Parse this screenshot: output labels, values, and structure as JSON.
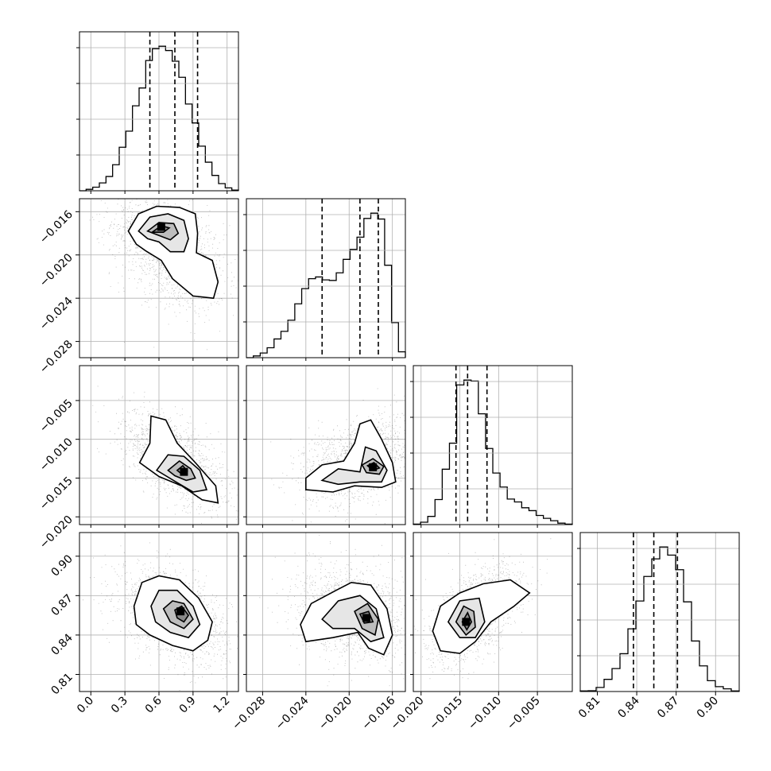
{
  "chart_data": {
    "type": "corner",
    "n_params": 4,
    "params": [
      {
        "range": [
          -0.1,
          1.3
        ],
        "ticks": [
          0.0,
          0.3,
          0.6,
          0.9,
          1.2
        ],
        "tick_labels": [
          "0.0",
          "0.3",
          "0.6",
          "0.9",
          "1.2"
        ],
        "quantiles": [
          0.52,
          0.74,
          0.94
        ]
      },
      {
        "range": [
          -0.0295,
          -0.0148
        ],
        "ticks": [
          -0.028,
          -0.024,
          -0.02,
          -0.016
        ],
        "tick_labels": [
          "−0.028",
          "−0.024",
          "−0.020",
          "−0.016"
        ],
        "quantiles": [
          -0.0225,
          -0.019,
          -0.0173
        ]
      },
      {
        "range": [
          -0.021,
          -0.0005
        ],
        "ticks": [
          -0.02,
          -0.015,
          -0.01,
          -0.005
        ],
        "tick_labels": [
          "−0.020",
          "−0.015",
          "−0.010",
          "−0.005"
        ],
        "quantiles": [
          -0.0155,
          -0.014,
          -0.0115
        ]
      },
      {
        "range": [
          0.797,
          0.918
        ],
        "ticks": [
          0.81,
          0.84,
          0.87,
          0.9
        ],
        "tick_labels": [
          "0.81",
          "0.84",
          "0.87",
          "0.90"
        ],
        "quantiles": [
          0.8375,
          0.853,
          0.871
        ]
      }
    ],
    "histograms": [
      {
        "counts": [
          0.0,
          0.4,
          1.0,
          2.2,
          4.0,
          7.3,
          12.2,
          16.7,
          23.8,
          28.8,
          36.5,
          39.8,
          40.5,
          39.3,
          36.3,
          31.8,
          24.3,
          19.0,
          12.5,
          8.0,
          4.3,
          2.0,
          0.8,
          0.2
        ]
      },
      {
        "counts": [
          0.0,
          0.3,
          0.8,
          1.7,
          3.2,
          4.5,
          6.4,
          9.2,
          11.8,
          13.5,
          13.8,
          13.3,
          13.2,
          14.5,
          16.8,
          18.5,
          20.6,
          23.8,
          24.7,
          23.7,
          15.8,
          6.0,
          1.0
        ]
      },
      {
        "counts": [
          0.1,
          0.5,
          1.7,
          5.2,
          11.5,
          16.9,
          29.0,
          30.0,
          29.8,
          23.0,
          15.8,
          10.7,
          7.8,
          5.3,
          4.7,
          3.5,
          2.9,
          1.9,
          1.3,
          0.8,
          0.3,
          0.1
        ]
      },
      {
        "counts": [
          0.2,
          0.3,
          1.5,
          4.5,
          8.5,
          14.0,
          23.2,
          33.5,
          42.6,
          49.1,
          53.5,
          50.5,
          45.1,
          33.2,
          18.7,
          9.5,
          4.0,
          1.8,
          1.0,
          0.2
        ]
      }
    ],
    "pairs": [
      {
        "x": 0,
        "y": 1,
        "scatter": {
          "cx": 0.68,
          "cy": -0.0195,
          "sx": 0.25,
          "sy": 0.0028,
          "rho": -0.45
        },
        "contours": [
          [
            [
              0.33,
              -0.0178
            ],
            [
              0.42,
              -0.0162
            ],
            [
              0.58,
              -0.0155
            ],
            [
              0.78,
              -0.0156
            ],
            [
              0.92,
              -0.0162
            ],
            [
              0.94,
              -0.018
            ],
            [
              0.93,
              -0.0198
            ],
            [
              1.07,
              -0.0205
            ],
            [
              1.12,
              -0.0225
            ],
            [
              1.08,
              -0.024
            ],
            [
              0.9,
              -0.0238
            ],
            [
              0.72,
              -0.0222
            ],
            [
              0.62,
              -0.0205
            ],
            [
              0.48,
              -0.0196
            ],
            [
              0.4,
              -0.019
            ]
          ],
          [
            [
              0.42,
              -0.0178
            ],
            [
              0.52,
              -0.0165
            ],
            [
              0.68,
              -0.0162
            ],
            [
              0.82,
              -0.0168
            ],
            [
              0.86,
              -0.0185
            ],
            [
              0.82,
              -0.0197
            ],
            [
              0.7,
              -0.0197
            ],
            [
              0.6,
              -0.0188
            ],
            [
              0.5,
              -0.0185
            ]
          ],
          [
            [
              0.5,
              -0.0178
            ],
            [
              0.6,
              -0.017
            ],
            [
              0.73,
              -0.0171
            ],
            [
              0.77,
              -0.018
            ],
            [
              0.7,
              -0.0186
            ],
            [
              0.6,
              -0.0182
            ]
          ],
          [
            [
              0.54,
              -0.0179
            ],
            [
              0.62,
              -0.0173
            ],
            [
              0.69,
              -0.0175
            ],
            [
              0.64,
              -0.0179
            ]
          ]
        ],
        "peak": [
          [
            0.62,
            -0.0174
          ]
        ]
      },
      {
        "x": 0,
        "y": 2,
        "scatter": {
          "cx": 0.72,
          "cy": -0.0125,
          "sx": 0.22,
          "sy": 0.003,
          "rho": -0.6
        },
        "contours": [
          [
            [
              0.43,
              -0.013
            ],
            [
              0.52,
              -0.0105
            ],
            [
              0.53,
              -0.007
            ],
            [
              0.66,
              -0.0075
            ],
            [
              0.76,
              -0.0105
            ],
            [
              0.92,
              -0.013
            ],
            [
              1.1,
              -0.016
            ],
            [
              1.12,
              -0.0182
            ],
            [
              0.98,
              -0.0178
            ],
            [
              0.8,
              -0.016
            ],
            [
              0.6,
              -0.0148
            ]
          ],
          [
            [
              0.58,
              -0.014
            ],
            [
              0.68,
              -0.012
            ],
            [
              0.82,
              -0.0122
            ],
            [
              0.96,
              -0.014
            ],
            [
              1.02,
              -0.0165
            ],
            [
              0.9,
              -0.0168
            ],
            [
              0.75,
              -0.0155
            ]
          ],
          [
            [
              0.68,
              -0.014
            ],
            [
              0.78,
              -0.0128
            ],
            [
              0.88,
              -0.0138
            ],
            [
              0.92,
              -0.015
            ],
            [
              0.84,
              -0.0153
            ],
            [
              0.74,
              -0.0147
            ]
          ],
          [
            [
              0.76,
              -0.014
            ],
            [
              0.81,
              -0.0134
            ],
            [
              0.85,
              -0.0141
            ],
            [
              0.81,
              -0.0146
            ]
          ]
        ],
        "peak": [
          [
            0.82,
            -0.0142
          ]
        ]
      },
      {
        "x": 0,
        "y": 3,
        "scatter": {
          "cx": 0.73,
          "cy": 0.855,
          "sx": 0.24,
          "sy": 0.018,
          "rho": -0.45
        },
        "contours": [
          [
            [
              0.38,
              0.862
            ],
            [
              0.45,
              0.88
            ],
            [
              0.6,
              0.885
            ],
            [
              0.78,
              0.882
            ],
            [
              0.95,
              0.868
            ],
            [
              1.07,
              0.85
            ],
            [
              1.03,
              0.836
            ],
            [
              0.9,
              0.828
            ],
            [
              0.72,
              0.832
            ],
            [
              0.52,
              0.84
            ],
            [
              0.4,
              0.848
            ]
          ],
          [
            [
              0.53,
              0.862
            ],
            [
              0.6,
              0.874
            ],
            [
              0.76,
              0.874
            ],
            [
              0.9,
              0.862
            ],
            [
              0.96,
              0.848
            ],
            [
              0.86,
              0.838
            ],
            [
              0.7,
              0.842
            ],
            [
              0.57,
              0.85
            ]
          ],
          [
            [
              0.64,
              0.86
            ],
            [
              0.72,
              0.866
            ],
            [
              0.82,
              0.864
            ],
            [
              0.9,
              0.852
            ],
            [
              0.82,
              0.845
            ],
            [
              0.7,
              0.85
            ]
          ],
          [
            [
              0.74,
              0.859
            ],
            [
              0.8,
              0.862
            ],
            [
              0.86,
              0.855
            ],
            [
              0.82,
              0.85
            ],
            [
              0.76,
              0.853
            ]
          ]
        ],
        "peak": [
          [
            0.79,
            0.858
          ]
        ]
      },
      {
        "x": 1,
        "y": 2,
        "scatter": {
          "cx": -0.0192,
          "cy": -0.0128,
          "sx": 0.0025,
          "sy": 0.0028,
          "rho": 0.35
        },
        "contours": [
          [
            [
              -0.024,
              -0.015
            ],
            [
              -0.0225,
              -0.0133
            ],
            [
              -0.0205,
              -0.0128
            ],
            [
              -0.0195,
              -0.0105
            ],
            [
              -0.019,
              -0.008
            ],
            [
              -0.018,
              -0.0075
            ],
            [
              -0.017,
              -0.01
            ],
            [
              -0.016,
              -0.013
            ],
            [
              -0.0157,
              -0.0155
            ],
            [
              -0.017,
              -0.0162
            ],
            [
              -0.0195,
              -0.016
            ],
            [
              -0.0215,
              -0.0168
            ],
            [
              -0.024,
              -0.0165
            ]
          ],
          [
            [
              -0.0225,
              -0.0153
            ],
            [
              -0.021,
              -0.0138
            ],
            [
              -0.019,
              -0.0142
            ],
            [
              -0.0185,
              -0.011
            ],
            [
              -0.0175,
              -0.0115
            ],
            [
              -0.0165,
              -0.014
            ],
            [
              -0.017,
              -0.0155
            ],
            [
              -0.019,
              -0.0155
            ],
            [
              -0.021,
              -0.0158
            ]
          ],
          [
            [
              -0.0188,
              -0.0133
            ],
            [
              -0.0178,
              -0.0125
            ],
            [
              -0.0168,
              -0.0135
            ],
            [
              -0.0172,
              -0.0145
            ],
            [
              -0.0184,
              -0.0143
            ]
          ],
          [
            [
              -0.0183,
              -0.0134
            ],
            [
              -0.0177,
              -0.013
            ],
            [
              -0.0172,
              -0.0137
            ],
            [
              -0.0178,
              -0.014
            ]
          ]
        ],
        "peak": [
          [
            -0.0178,
            -0.0136
          ]
        ]
      },
      {
        "x": 1,
        "y": 3,
        "scatter": {
          "cx": -0.0195,
          "cy": 0.856,
          "sx": 0.0027,
          "sy": 0.018,
          "rho": -0.2
        },
        "contours": [
          [
            [
              -0.0245,
              0.848
            ],
            [
              -0.0235,
              0.864
            ],
            [
              -0.0212,
              0.874
            ],
            [
              -0.0198,
              0.88
            ],
            [
              -0.018,
              0.878
            ],
            [
              -0.0165,
              0.86
            ],
            [
              -0.016,
              0.84
            ],
            [
              -0.0168,
              0.825
            ],
            [
              -0.0182,
              0.83
            ],
            [
              -0.0192,
              0.842
            ],
            [
              -0.0215,
              0.838
            ],
            [
              -0.024,
              0.835
            ]
          ],
          [
            [
              -0.0225,
              0.852
            ],
            [
              -0.021,
              0.866
            ],
            [
              -0.019,
              0.87
            ],
            [
              -0.0175,
              0.86
            ],
            [
              -0.0168,
              0.838
            ],
            [
              -0.018,
              0.835
            ],
            [
              -0.0195,
              0.845
            ],
            [
              -0.0215,
              0.845
            ]
          ],
          [
            [
              -0.0195,
              0.858
            ],
            [
              -0.0183,
              0.864
            ],
            [
              -0.0173,
              0.852
            ],
            [
              -0.0176,
              0.84
            ],
            [
              -0.0188,
              0.845
            ]
          ],
          [
            [
              -0.019,
              0.856
            ],
            [
              -0.0182,
              0.858
            ],
            [
              -0.0178,
              0.85
            ],
            [
              -0.0186,
              0.849
            ]
          ]
        ],
        "peak": [
          [
            -0.0184,
            0.853
          ]
        ]
      },
      {
        "x": 2,
        "y": 3,
        "scatter": {
          "cx": -0.013,
          "cy": 0.856,
          "sx": 0.003,
          "sy": 0.018,
          "rho": 0.55
        },
        "contours": [
          [
            [
              -0.0185,
              0.843
            ],
            [
              -0.0175,
              0.862
            ],
            [
              -0.015,
              0.872
            ],
            [
              -0.012,
              0.879
            ],
            [
              -0.0085,
              0.882
            ],
            [
              -0.006,
              0.872
            ],
            [
              -0.008,
              0.862
            ],
            [
              -0.011,
              0.85
            ],
            [
              -0.013,
              0.835
            ],
            [
              -0.015,
              0.826
            ],
            [
              -0.0175,
              0.828
            ]
          ],
          [
            [
              -0.0165,
              0.85
            ],
            [
              -0.015,
              0.866
            ],
            [
              -0.0125,
              0.868
            ],
            [
              -0.0118,
              0.85
            ],
            [
              -0.013,
              0.838
            ],
            [
              -0.015,
              0.838
            ]
          ],
          [
            [
              -0.0155,
              0.85
            ],
            [
              -0.0145,
              0.862
            ],
            [
              -0.0132,
              0.858
            ],
            [
              -0.013,
              0.846
            ],
            [
              -0.0142,
              0.84
            ]
          ],
          [
            [
              -0.0147,
              0.85
            ],
            [
              -0.014,
              0.857
            ],
            [
              -0.0135,
              0.85
            ],
            [
              -0.0141,
              0.844
            ]
          ]
        ],
        "peak": [
          [
            -0.0142,
            0.85
          ]
        ]
      }
    ]
  }
}
